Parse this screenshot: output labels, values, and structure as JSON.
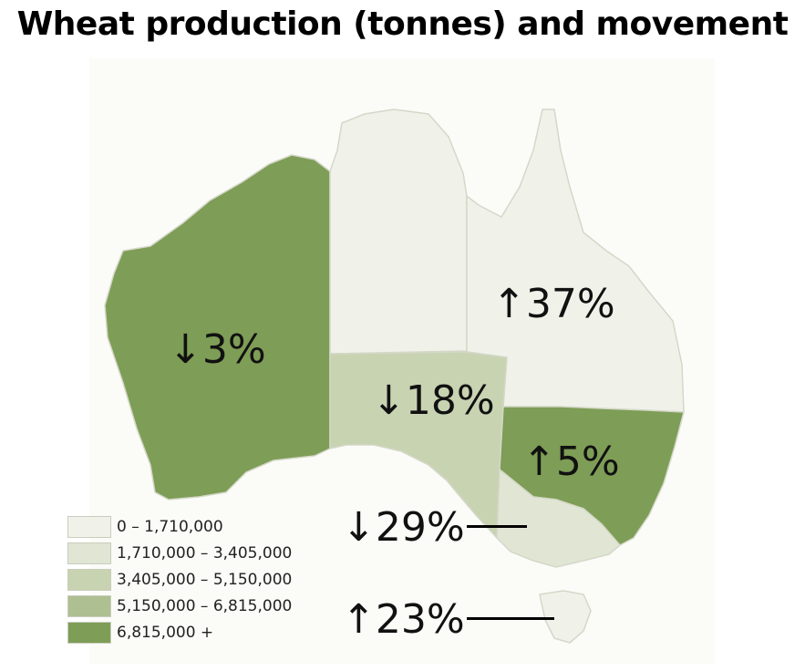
{
  "title": "Wheat production (tonnes) and movement",
  "legend": [
    {
      "label": "0 – 1,710,000",
      "color": "#f0f2ea"
    },
    {
      "label": "1,710,000 – 3,405,000",
      "color": "#e1e6d4"
    },
    {
      "label": "3,405,000 – 5,150,000",
      "color": "#c8d3b2"
    },
    {
      "label": "5,150,000 – 6,815,000",
      "color": "#aebf91"
    },
    {
      "label": "6,815,000 +",
      "color": "#7e9d56"
    }
  ],
  "states": {
    "western_australia": {
      "movement": "↓3%",
      "color": "#7e9d56"
    },
    "northern_territory": {
      "color": "#f0f2ea"
    },
    "queensland": {
      "movement": "↑37%",
      "color": "#f0f2ea"
    },
    "south_australia": {
      "movement": "↓18%",
      "color": "#c8d3b2"
    },
    "new_south_wales": {
      "movement": "↑5%",
      "color": "#7e9d56"
    },
    "victoria": {
      "movement": "↓29%",
      "color": "#e1e6d4"
    },
    "tasmania": {
      "movement": "↑23%",
      "color": "#f0f2ea"
    }
  }
}
